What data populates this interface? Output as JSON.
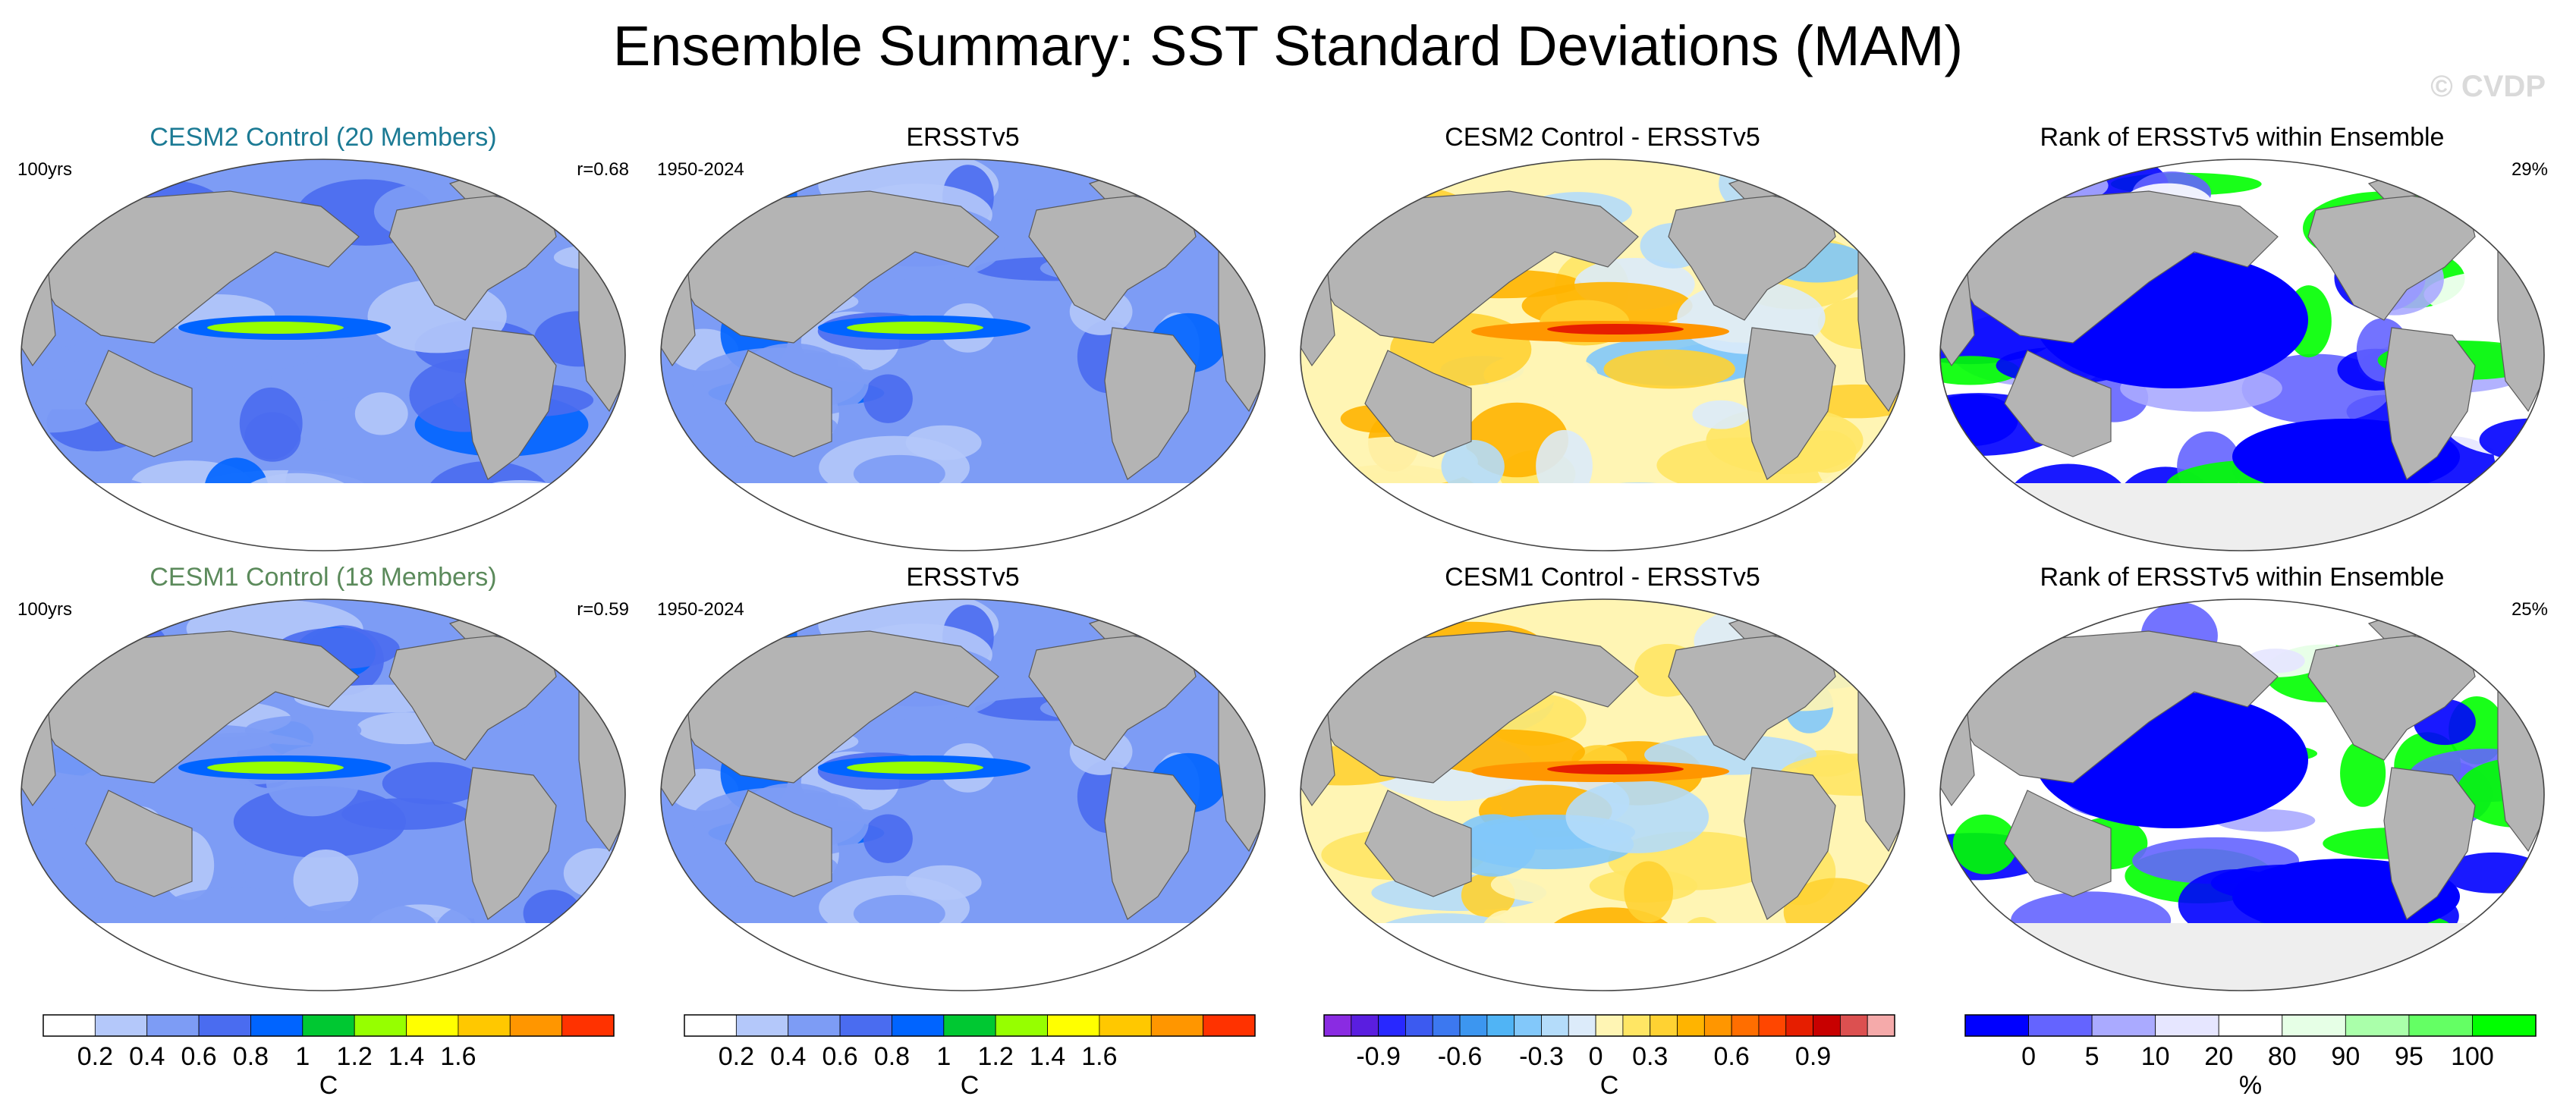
{
  "title": "Ensemble Summary: SST Standard Deviations (MAM)",
  "watermark": "© CVDP",
  "panels": [
    {
      "title": "CESM2 Control (20 Members)",
      "title_color": "#1b7a94",
      "left": "100yrs",
      "right": "r=0.68",
      "scheme": "sd",
      "variant": 0
    },
    {
      "title": "ERSSTv5",
      "title_color": "#000000",
      "left": "1950-2024",
      "right": "",
      "scheme": "sd",
      "variant": 1
    },
    {
      "title": "CESM2 Control - ERSSTv5",
      "title_color": "#000000",
      "left": "",
      "right": "",
      "scheme": "diff",
      "variant": 2
    },
    {
      "title": "Rank of ERSSTv5 within Ensemble",
      "title_color": "#000000",
      "left": "",
      "right": "29%",
      "scheme": "rank",
      "variant": 3
    },
    {
      "title": "CESM1 Control (18 Members)",
      "title_color": "#5b8a5b",
      "left": "100yrs",
      "right": "r=0.59",
      "scheme": "sd",
      "variant": 4
    },
    {
      "title": "ERSSTv5",
      "title_color": "#000000",
      "left": "1950-2024",
      "right": "",
      "scheme": "sd",
      "variant": 1
    },
    {
      "title": "CESM1 Control - ERSSTv5",
      "title_color": "#000000",
      "left": "",
      "right": "",
      "scheme": "diff",
      "variant": 5
    },
    {
      "title": "Rank of ERSSTv5 within Ensemble",
      "title_color": "#000000",
      "left": "",
      "right": "25%",
      "scheme": "rank",
      "variant": 6
    }
  ],
  "colorbars": [
    {
      "name": "sd-colorbar-1",
      "colors": [
        "#ffffff",
        "#b4c8fa",
        "#7d9cf5",
        "#4a6cf0",
        "#0064ff",
        "#00c832",
        "#96ff00",
        "#ffff00",
        "#ffc800",
        "#ff9600",
        "#ff3200"
      ],
      "ticks": [
        "0.2",
        "0.4",
        "0.6",
        "0.8",
        "1",
        "1.2",
        "1.4",
        "1.6"
      ],
      "tick_index": [
        1,
        2,
        3,
        4,
        5,
        6,
        7,
        8
      ],
      "unit": "C"
    },
    {
      "name": "sd-colorbar-2",
      "colors": [
        "#ffffff",
        "#b4c8fa",
        "#7d9cf5",
        "#4a6cf0",
        "#0064ff",
        "#00c832",
        "#96ff00",
        "#ffff00",
        "#ffc800",
        "#ff9600",
        "#ff3200"
      ],
      "ticks": [
        "0.2",
        "0.4",
        "0.6",
        "0.8",
        "1",
        "1.2",
        "1.4",
        "1.6"
      ],
      "tick_index": [
        1,
        2,
        3,
        4,
        5,
        6,
        7,
        8
      ],
      "unit": "C"
    },
    {
      "name": "diff-colorbar",
      "colors": [
        "#8a2be2",
        "#5a1ee0",
        "#2828ff",
        "#3c5af0",
        "#3c78f0",
        "#3c96f0",
        "#50b4f5",
        "#82c8fa",
        "#b4dcfa",
        "#dcebfa",
        "#fff5b4",
        "#ffe664",
        "#ffd232",
        "#ffb400",
        "#ff9600",
        "#ff6e00",
        "#ff4600",
        "#e61e00",
        "#c80000",
        "#dc5050",
        "#f5aaaa"
      ],
      "ticks": [
        "-0.9",
        "-0.6",
        "-0.3",
        "0",
        "0.3",
        "0.6",
        "0.9"
      ],
      "tick_index": [
        2,
        5,
        8,
        10,
        12,
        15,
        18
      ],
      "unit": "C"
    },
    {
      "name": "rank-colorbar",
      "colors": [
        "#0000ff",
        "#6464ff",
        "#aaaaff",
        "#e6e6ff",
        "#ffffff",
        "#e6ffe6",
        "#aaffaa",
        "#64ff64",
        "#00ff00"
      ],
      "ticks": [
        "0",
        "5",
        "10",
        "20",
        "80",
        "90",
        "95",
        "100"
      ],
      "tick_index": [
        1,
        2,
        3,
        4,
        5,
        6,
        7,
        8
      ],
      "unit": "%"
    }
  ]
}
